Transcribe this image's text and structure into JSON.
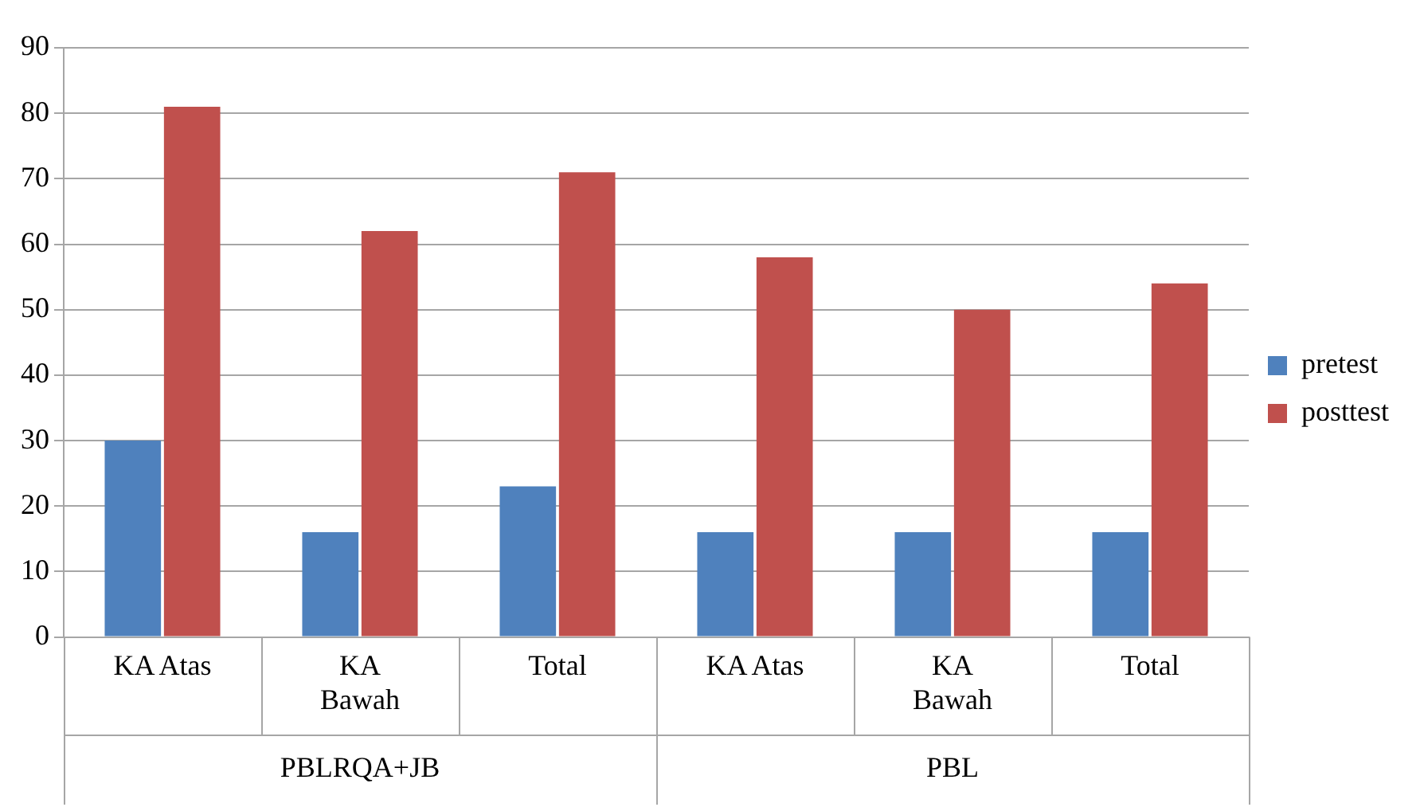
{
  "chart_data": {
    "type": "bar",
    "categories": [
      "KA Atas",
      "KA Bawah",
      "Total",
      "KA Atas",
      "KA Bawah",
      "Total"
    ],
    "series": [
      {
        "name": "pretest",
        "color": "#4f81bd",
        "values": [
          30,
          16,
          23,
          16,
          16,
          16
        ]
      },
      {
        "name": "posttest",
        "color": "#c0504d",
        "values": [
          81,
          62,
          71,
          58,
          50,
          54
        ]
      }
    ],
    "annotations": [
      "PBLRQA+JB",
      "PBL"
    ],
    "ylim": [
      0,
      90
    ],
    "yticks": [
      0,
      10,
      20,
      30,
      40,
      50,
      60,
      70,
      80,
      90
    ],
    "grid": "y",
    "legend": "right"
  }
}
